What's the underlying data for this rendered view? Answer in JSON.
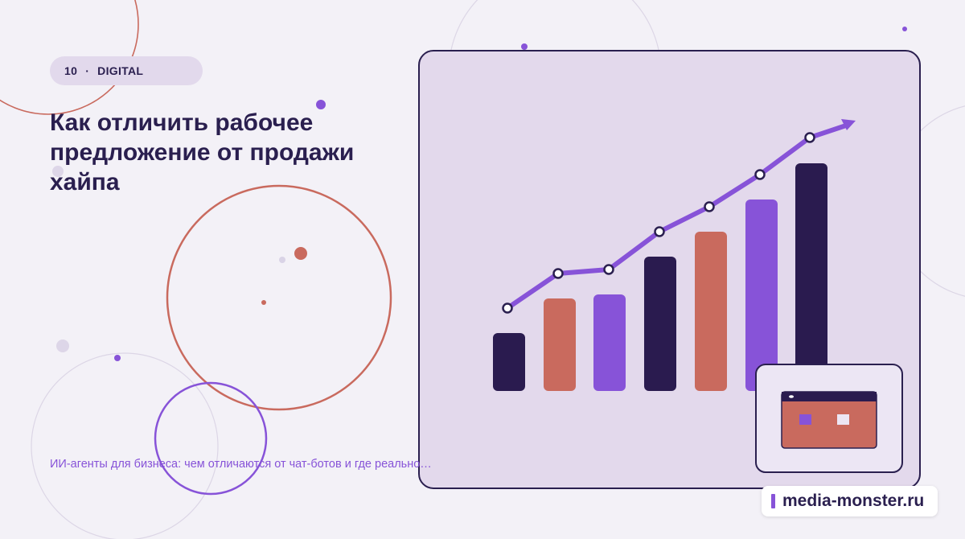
{
  "badge": {
    "number": "10",
    "separator": "·",
    "label": "DIGITAL"
  },
  "title": "Как отличить рабочее предложение от продажи хайпа",
  "subtitle": "ИИ-агенты для бизнеса: чем отличаются от чат-ботов и где реально…",
  "site": "media-monster.ru"
}
